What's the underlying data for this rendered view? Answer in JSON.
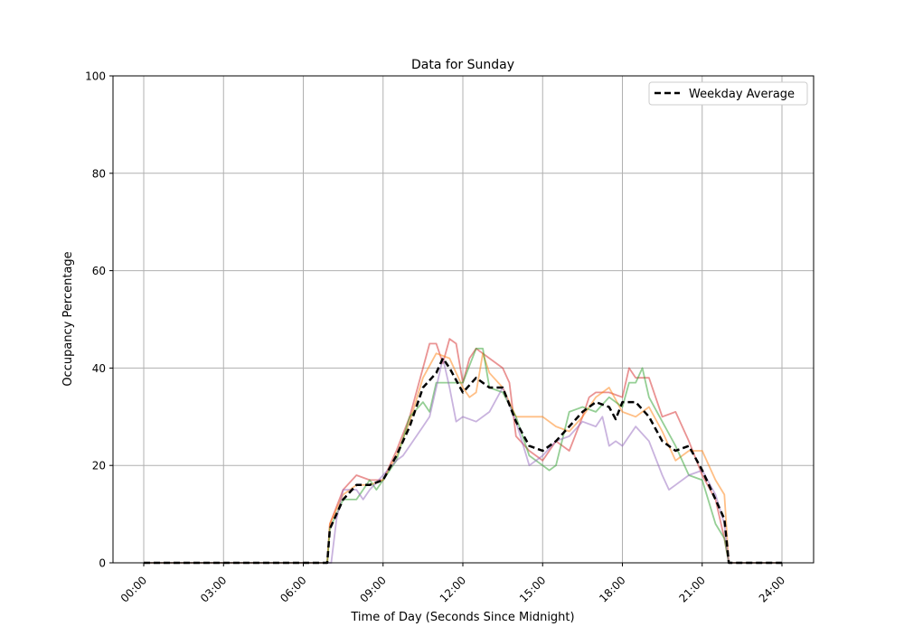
{
  "chart_data": {
    "type": "line",
    "title": "Data for Sunday",
    "xlabel": "Time of Day (Seconds Since Midnight)",
    "ylabel": "Occupancy Percentage",
    "xlim": [
      "00:00",
      "24:00"
    ],
    "ylim": [
      0,
      100
    ],
    "xticks": [
      "00:00",
      "03:00",
      "06:00",
      "09:00",
      "12:00",
      "15:00",
      "18:00",
      "21:00",
      "24:00"
    ],
    "yticks": [
      0,
      20,
      40,
      60,
      80,
      100
    ],
    "grid": true,
    "legend_position": "top-right",
    "series": [
      {
        "color": "#d62728",
        "opacity": 0.5,
        "points": [
          [
            "00:00",
            0
          ],
          [
            "06:54",
            0
          ],
          [
            "07:00",
            8
          ],
          [
            "07:30",
            15
          ],
          [
            "08:00",
            18
          ],
          [
            "08:30",
            17
          ],
          [
            "09:00",
            17
          ],
          [
            "09:30",
            23
          ],
          [
            "10:00",
            30
          ],
          [
            "10:30",
            40
          ],
          [
            "10:45",
            45
          ],
          [
            "11:00",
            45
          ],
          [
            "11:15",
            41
          ],
          [
            "11:30",
            46
          ],
          [
            "11:45",
            45
          ],
          [
            "12:00",
            37
          ],
          [
            "12:15",
            42
          ],
          [
            "12:30",
            44
          ],
          [
            "13:00",
            42
          ],
          [
            "13:30",
            40
          ],
          [
            "13:45",
            37
          ],
          [
            "14:00",
            26
          ],
          [
            "14:30",
            23
          ],
          [
            "15:00",
            21
          ],
          [
            "15:30",
            25
          ],
          [
            "16:00",
            23
          ],
          [
            "16:30",
            30
          ],
          [
            "16:45",
            34
          ],
          [
            "17:00",
            35
          ],
          [
            "17:30",
            35
          ],
          [
            "18:00",
            34
          ],
          [
            "18:15",
            40
          ],
          [
            "18:30",
            38
          ],
          [
            "19:00",
            38
          ],
          [
            "19:30",
            30
          ],
          [
            "20:00",
            31
          ],
          [
            "20:30",
            25
          ],
          [
            "21:00",
            18
          ],
          [
            "21:30",
            13
          ],
          [
            "21:50",
            5
          ],
          [
            "22:00",
            0
          ],
          [
            "24:00",
            0
          ]
        ]
      },
      {
        "color": "#ff7f0e",
        "opacity": 0.5,
        "points": [
          [
            "00:00",
            0
          ],
          [
            "06:54",
            0
          ],
          [
            "07:00",
            8
          ],
          [
            "07:30",
            14
          ],
          [
            "08:00",
            16
          ],
          [
            "08:30",
            16
          ],
          [
            "09:00",
            17
          ],
          [
            "09:30",
            22
          ],
          [
            "10:00",
            29
          ],
          [
            "10:30",
            38
          ],
          [
            "11:00",
            43
          ],
          [
            "11:30",
            42
          ],
          [
            "12:00",
            36
          ],
          [
            "12:15",
            34
          ],
          [
            "12:30",
            35
          ],
          [
            "12:45",
            43
          ],
          [
            "13:00",
            39
          ],
          [
            "13:30",
            36
          ],
          [
            "14:00",
            30
          ],
          [
            "14:30",
            30
          ],
          [
            "15:00",
            30
          ],
          [
            "15:30",
            28
          ],
          [
            "16:00",
            27
          ],
          [
            "16:30",
            30
          ],
          [
            "17:00",
            34
          ],
          [
            "17:30",
            36
          ],
          [
            "18:00",
            31
          ],
          [
            "18:30",
            30
          ],
          [
            "18:45",
            31
          ],
          [
            "19:00",
            32
          ],
          [
            "19:30",
            27
          ],
          [
            "20:00",
            21
          ],
          [
            "20:30",
            23
          ],
          [
            "21:00",
            23
          ],
          [
            "21:30",
            17
          ],
          [
            "21:50",
            14
          ],
          [
            "22:00",
            0
          ],
          [
            "24:00",
            0
          ]
        ]
      },
      {
        "color": "#2ca02c",
        "opacity": 0.5,
        "points": [
          [
            "00:00",
            0
          ],
          [
            "06:54",
            0
          ],
          [
            "07:00",
            7
          ],
          [
            "07:30",
            13
          ],
          [
            "08:00",
            13
          ],
          [
            "08:30",
            17
          ],
          [
            "08:45",
            15
          ],
          [
            "09:00",
            17
          ],
          [
            "09:30",
            21
          ],
          [
            "10:00",
            30
          ],
          [
            "10:30",
            33
          ],
          [
            "10:45",
            31
          ],
          [
            "11:00",
            37
          ],
          [
            "11:30",
            37
          ],
          [
            "12:00",
            37
          ],
          [
            "12:30",
            44
          ],
          [
            "12:45",
            44
          ],
          [
            "13:00",
            36
          ],
          [
            "13:30",
            35
          ],
          [
            "14:00",
            30
          ],
          [
            "14:30",
            22
          ],
          [
            "15:00",
            20
          ],
          [
            "15:15",
            19
          ],
          [
            "15:30",
            20
          ],
          [
            "16:00",
            31
          ],
          [
            "16:30",
            32
          ],
          [
            "17:00",
            31
          ],
          [
            "17:30",
            34
          ],
          [
            "18:00",
            32
          ],
          [
            "18:15",
            37
          ],
          [
            "18:30",
            37
          ],
          [
            "18:45",
            40
          ],
          [
            "19:00",
            34
          ],
          [
            "19:30",
            29
          ],
          [
            "20:00",
            24
          ],
          [
            "20:30",
            18
          ],
          [
            "21:00",
            17
          ],
          [
            "21:30",
            8
          ],
          [
            "21:50",
            5
          ],
          [
            "22:00",
            0
          ],
          [
            "24:00",
            0
          ]
        ]
      },
      {
        "color": "#9467bd",
        "opacity": 0.5,
        "points": [
          [
            "00:00",
            0
          ],
          [
            "07:03",
            0
          ],
          [
            "07:15",
            9
          ],
          [
            "07:30",
            15
          ],
          [
            "08:00",
            15
          ],
          [
            "08:15",
            13
          ],
          [
            "08:30",
            15
          ],
          [
            "09:00",
            18
          ],
          [
            "09:30",
            21
          ],
          [
            "09:45",
            22
          ],
          [
            "10:00",
            24
          ],
          [
            "10:30",
            28
          ],
          [
            "10:45",
            30
          ],
          [
            "11:00",
            36
          ],
          [
            "11:15",
            42
          ],
          [
            "11:30",
            36
          ],
          [
            "11:45",
            29
          ],
          [
            "12:00",
            30
          ],
          [
            "12:30",
            29
          ],
          [
            "13:00",
            31
          ],
          [
            "13:30",
            36
          ],
          [
            "14:00",
            29
          ],
          [
            "14:30",
            20
          ],
          [
            "15:00",
            22
          ],
          [
            "15:30",
            25
          ],
          [
            "16:00",
            26
          ],
          [
            "16:30",
            29
          ],
          [
            "17:00",
            28
          ],
          [
            "17:15",
            30
          ],
          [
            "17:30",
            24
          ],
          [
            "17:45",
            25
          ],
          [
            "18:00",
            24
          ],
          [
            "18:30",
            28
          ],
          [
            "19:00",
            25
          ],
          [
            "19:30",
            18
          ],
          [
            "19:45",
            15
          ],
          [
            "20:00",
            16
          ],
          [
            "20:30",
            18
          ],
          [
            "21:00",
            19
          ],
          [
            "21:30",
            14
          ],
          [
            "21:50",
            8
          ],
          [
            "22:00",
            0
          ],
          [
            "24:00",
            0
          ]
        ]
      },
      {
        "name": "Weekday Average",
        "color": "#000000",
        "style": "dashed",
        "points": [
          [
            "00:00",
            0
          ],
          [
            "06:54",
            0
          ],
          [
            "07:00",
            7
          ],
          [
            "07:30",
            13
          ],
          [
            "08:00",
            16
          ],
          [
            "08:30",
            16
          ],
          [
            "09:00",
            17
          ],
          [
            "09:30",
            22
          ],
          [
            "10:00",
            28
          ],
          [
            "10:30",
            36
          ],
          [
            "11:00",
            39
          ],
          [
            "11:15",
            42
          ],
          [
            "11:30",
            40
          ],
          [
            "12:00",
            35
          ],
          [
            "12:30",
            38
          ],
          [
            "13:00",
            36
          ],
          [
            "13:30",
            36
          ],
          [
            "14:00",
            29
          ],
          [
            "14:30",
            24
          ],
          [
            "15:00",
            23
          ],
          [
            "15:30",
            25
          ],
          [
            "16:00",
            28
          ],
          [
            "16:30",
            31
          ],
          [
            "17:00",
            33
          ],
          [
            "17:30",
            32
          ],
          [
            "17:45",
            29.5
          ],
          [
            "18:00",
            33
          ],
          [
            "18:30",
            33
          ],
          [
            "19:00",
            30
          ],
          [
            "19:30",
            25
          ],
          [
            "20:00",
            23
          ],
          [
            "20:30",
            24
          ],
          [
            "21:00",
            19
          ],
          [
            "21:30",
            13
          ],
          [
            "21:50",
            9
          ],
          [
            "22:00",
            0
          ],
          [
            "24:00",
            0
          ]
        ]
      }
    ]
  }
}
